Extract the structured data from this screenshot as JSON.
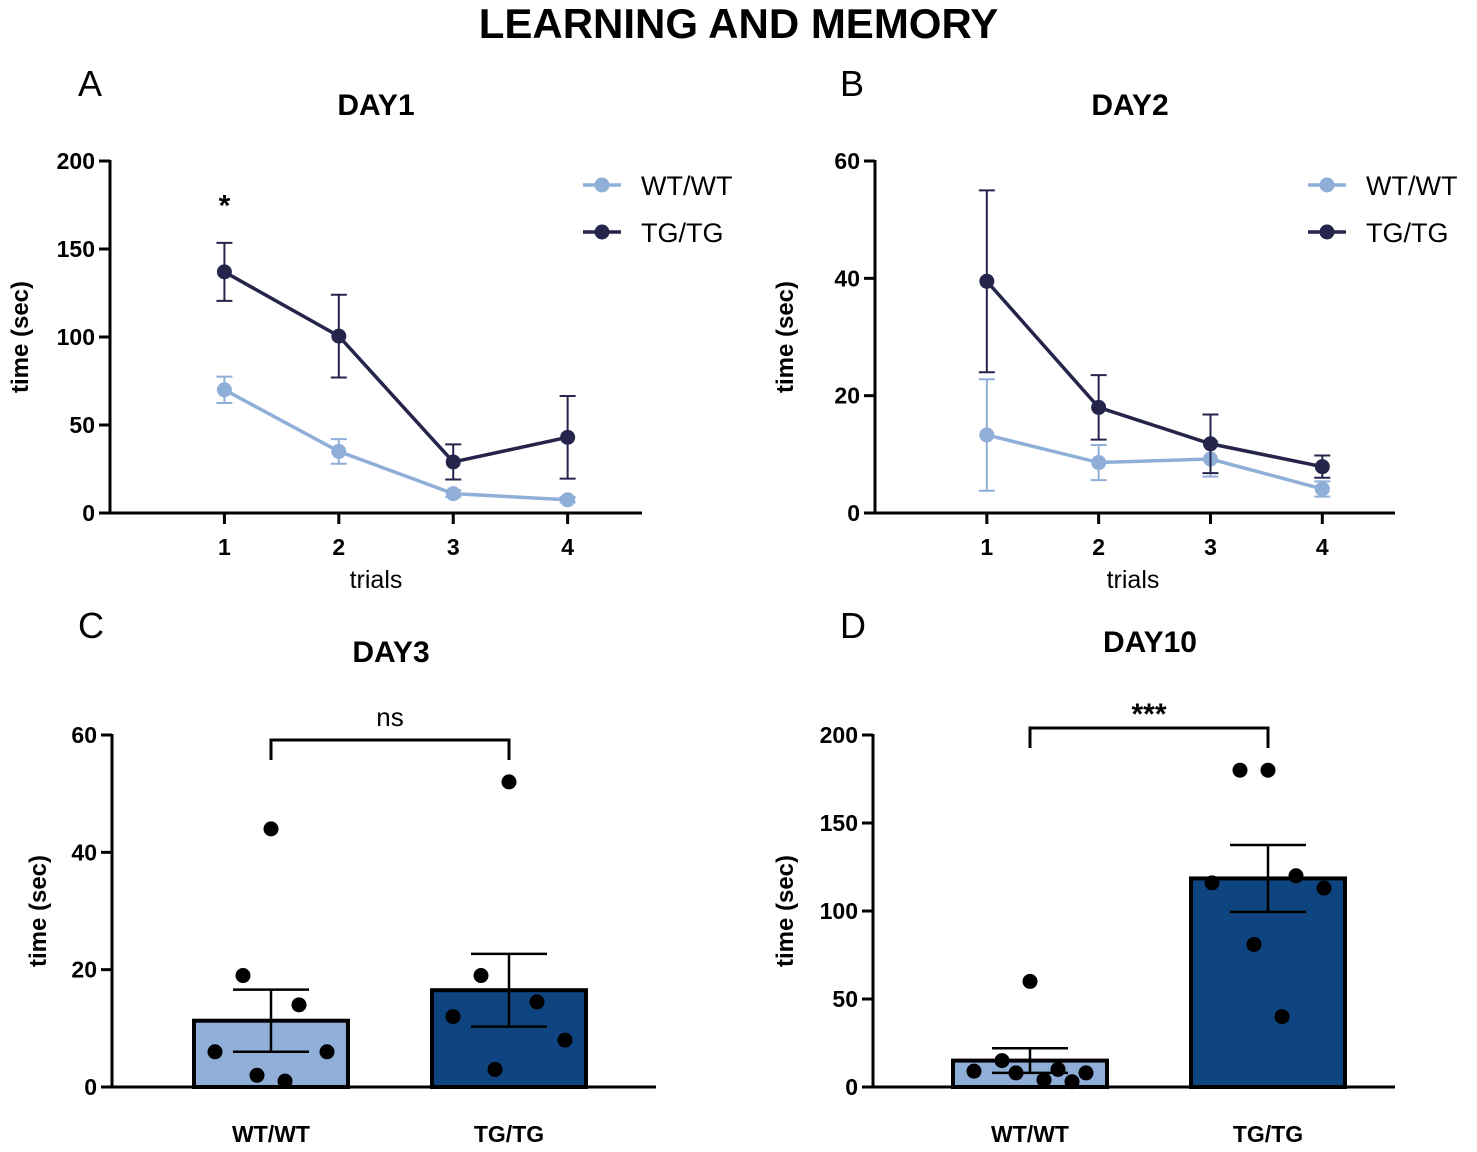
{
  "title": "LEARNING AND MEMORY",
  "colors": {
    "wt_line": "#8FAFD8",
    "tg_line": "#25244A",
    "wt_bar": "#8FAFD8",
    "tg_bar": "#0E4580",
    "axis": "#000000"
  },
  "chart_data": [
    {
      "panel": "A",
      "type": "line",
      "title": "DAY1",
      "xlabel": "trials",
      "ylabel": "time (sec)",
      "x": [
        1,
        2,
        3,
        4
      ],
      "xlim": [
        0.0,
        4.65
      ],
      "ylim": [
        0,
        200
      ],
      "yticks": [
        0,
        50,
        100,
        150,
        200
      ],
      "series": [
        {
          "name": "WT/WT",
          "values": [
            70,
            35,
            11,
            7.5
          ],
          "err": [
            7.5,
            7,
            2,
            1.5
          ]
        },
        {
          "name": "TG/TG",
          "values": [
            137,
            100.5,
            29,
            43
          ],
          "err": [
            16.5,
            23.5,
            10,
            23.5
          ]
        }
      ],
      "annotations": [
        {
          "x": 1,
          "y": 177,
          "text": "*"
        }
      ],
      "legend": "top-right"
    },
    {
      "panel": "B",
      "type": "line",
      "title": "DAY2",
      "xlabel": "trials",
      "ylabel": "time (sec)",
      "x": [
        1,
        2,
        3,
        4
      ],
      "xlim": [
        0.0,
        4.65
      ],
      "ylim": [
        0,
        60
      ],
      "yticks": [
        0,
        20,
        40,
        60
      ],
      "series": [
        {
          "name": "WT/WT",
          "values": [
            13.3,
            8.6,
            9.2,
            4.1
          ],
          "err": [
            9.5,
            3,
            3,
            1.3
          ]
        },
        {
          "name": "TG/TG",
          "values": [
            39.5,
            18,
            11.8,
            7.9
          ],
          "err": [
            15.5,
            5.5,
            5,
            1.9
          ]
        }
      ],
      "legend": "top-right"
    },
    {
      "panel": "C",
      "type": "bar",
      "title": "DAY3",
      "ylabel": "time (sec)",
      "ylim": [
        0,
        60
      ],
      "yticks": [
        0,
        20,
        40,
        60
      ],
      "categories": [
        "WT/WT",
        "TG/TG"
      ],
      "values": [
        11.3,
        16.5
      ],
      "err": [
        5.3,
        6.2
      ],
      "points": [
        [
          44,
          19,
          14,
          6,
          6,
          2,
          1
        ],
        [
          52,
          19,
          14.5,
          12,
          8,
          3
        ]
      ],
      "significance": "ns"
    },
    {
      "panel": "D",
      "type": "bar",
      "title": "DAY10",
      "ylabel": "time (sec)",
      "ylim": [
        0,
        200
      ],
      "yticks": [
        0,
        50,
        100,
        150,
        200
      ],
      "categories": [
        "WT/WT",
        "TG/TG"
      ],
      "values": [
        15,
        118.5
      ],
      "err": [
        7,
        19
      ],
      "points": [
        [
          60,
          15,
          10,
          9,
          8,
          8,
          4,
          3
        ],
        [
          180,
          180,
          120,
          116,
          113,
          81,
          40
        ]
      ],
      "significance": "***"
    }
  ]
}
